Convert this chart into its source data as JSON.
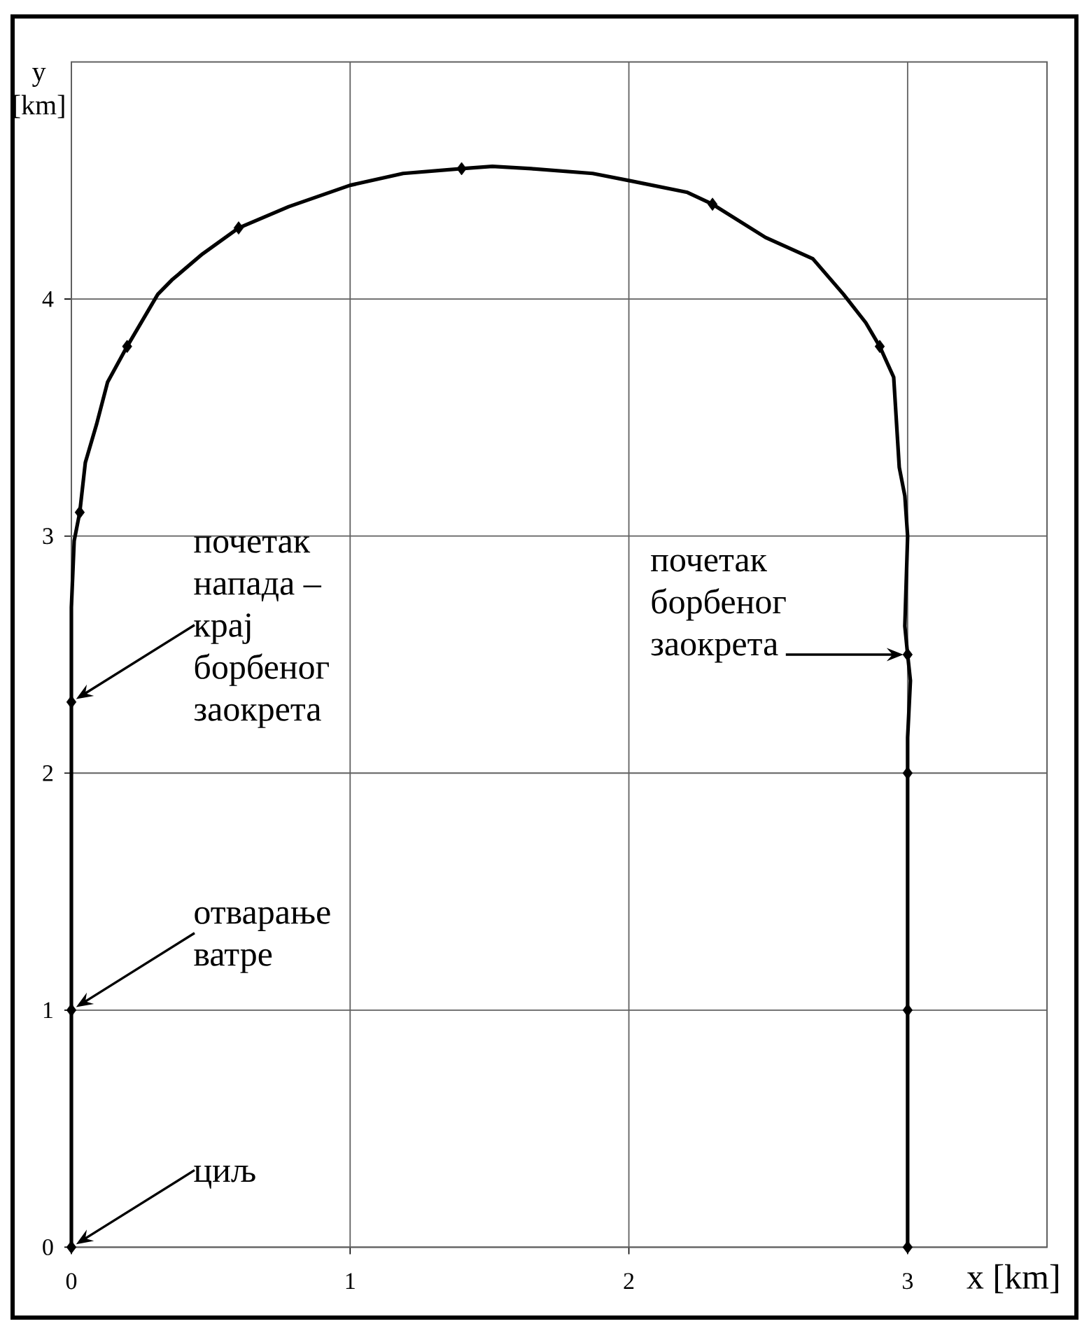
{
  "chart_data": {
    "type": "line",
    "xlabel": "x [km]",
    "ylabel": "y [km]",
    "xlim": [
      0,
      3.5
    ],
    "ylim": [
      0,
      5
    ],
    "xticks": [
      0,
      1,
      2,
      3
    ],
    "yticks": [
      0,
      1,
      2,
      3,
      4
    ],
    "grid": true,
    "series": [
      {
        "color": "#000000",
        "x": [
          0,
          0,
          0.01,
          0.03,
          0.05,
          0.09,
          0.13,
          0.2,
          0.31,
          0.36,
          0.47,
          0.6,
          0.78,
          1.0,
          1.19,
          1.4,
          1.51,
          1.65,
          1.87,
          2.0,
          2.21,
          2.3,
          2.49,
          2.66,
          2.77,
          2.85,
          2.9,
          2.95,
          2.97,
          2.99,
          3.0,
          2.99,
          3.0,
          3.01,
          3.0,
          3
        ],
        "values": [
          0,
          2.7,
          2.98,
          3.1,
          3.31,
          3.47,
          3.65,
          3.8,
          4.02,
          4.08,
          4.19,
          4.3,
          4.39,
          4.48,
          4.53,
          4.55,
          4.56,
          4.55,
          4.53,
          4.5,
          4.45,
          4.4,
          4.26,
          4.17,
          4.02,
          3.9,
          3.8,
          3.67,
          3.29,
          3.17,
          3.0,
          2.62,
          2.5,
          2.39,
          2.15,
          0
        ]
      },
      {
        "type": "scatter",
        "color": "#000000",
        "marker": "diamond",
        "x": [
          0,
          0,
          0,
          0.03,
          0.2,
          0.6,
          1.4,
          2.3,
          2.9,
          3,
          3,
          3,
          3
        ],
        "values": [
          0,
          1,
          2.3,
          3.1,
          3.8,
          4.3,
          4.55,
          4.4,
          3.8,
          2.5,
          2,
          1,
          0
        ]
      }
    ],
    "annotations": [
      "циљ",
      "отварање ватре",
      "почетак напада – крај борбеног заокрета",
      "почетак борбеног заокрета"
    ]
  }
}
